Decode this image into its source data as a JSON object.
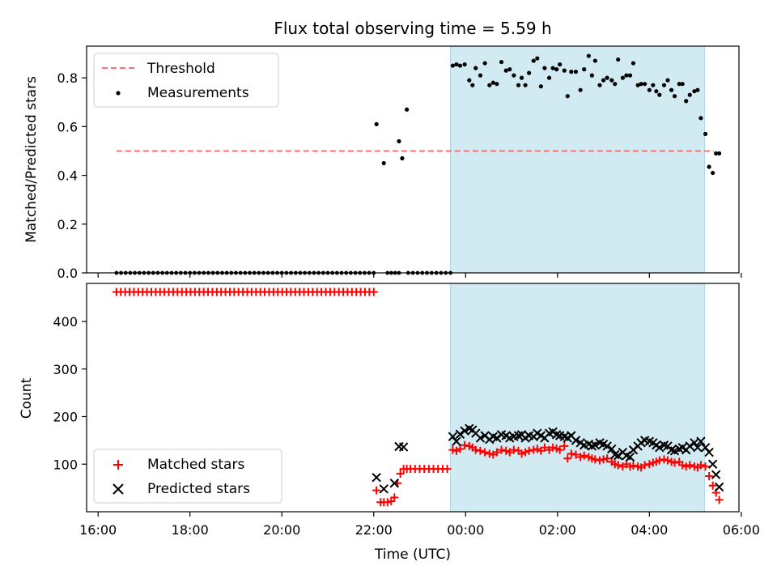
{
  "title": "Flux total observing time = 5.59 h",
  "colors": {
    "threshold": "#ff7070",
    "measurement": "#000000",
    "matched": "#ff0000",
    "predicted": "#000000",
    "shade": "#add8e6"
  },
  "chart_data": [
    {
      "type": "scatter",
      "panel": "top",
      "ylabel": "Matched/Predicted stars",
      "xlabel": "",
      "ylim": [
        0,
        0.93
      ],
      "yticks": [
        "0.0",
        "0.2",
        "0.4",
        "0.6",
        "0.8"
      ],
      "grid": false,
      "legend_position": "top-left",
      "shaded_interval_hours": [
        23.67,
        29.2
      ],
      "series": [
        {
          "name": "Threshold",
          "kind": "dashed-line",
          "x": [
            16.4,
            29.4
          ],
          "y": [
            0.5,
            0.5
          ]
        },
        {
          "name": "Measurements",
          "kind": "points",
          "zero_run_hours": [
            [
              16.4,
              22.0
            ],
            [
              22.3,
              22.55
            ],
            [
              22.75,
              23.67
            ]
          ],
          "x": [
            22.06,
            22.22,
            22.55,
            22.62,
            22.72,
            23.72,
            23.8,
            23.88,
            23.98,
            24.08,
            24.15,
            24.22,
            24.32,
            24.42,
            24.52,
            24.6,
            24.68,
            24.78,
            24.88,
            24.96,
            25.05,
            25.15,
            25.22,
            25.3,
            25.38,
            25.48,
            25.56,
            25.64,
            25.72,
            25.82,
            25.9,
            25.98,
            26.05,
            26.15,
            26.22,
            26.3,
            26.4,
            26.5,
            26.58,
            26.68,
            26.75,
            26.82,
            26.92,
            27.0,
            27.08,
            27.18,
            27.25,
            27.32,
            27.42,
            27.5,
            27.58,
            27.65,
            27.75,
            27.82,
            27.9,
            28.0,
            28.08,
            28.15,
            28.22,
            28.32,
            28.4,
            28.48,
            28.55,
            28.65,
            28.72,
            28.8,
            28.88,
            28.98,
            29.05,
            29.12,
            29.22,
            29.3,
            29.38,
            29.45,
            29.52
          ],
          "y": [
            0.61,
            0.45,
            0.54,
            0.47,
            0.67,
            0.85,
            0.855,
            0.85,
            0.855,
            0.79,
            0.77,
            0.84,
            0.81,
            0.86,
            0.77,
            0.78,
            0.775,
            0.865,
            0.83,
            0.835,
            0.81,
            0.77,
            0.8,
            0.77,
            0.82,
            0.87,
            0.88,
            0.765,
            0.84,
            0.8,
            0.84,
            0.835,
            0.855,
            0.83,
            0.725,
            0.825,
            0.825,
            0.75,
            0.835,
            0.89,
            0.81,
            0.87,
            0.77,
            0.79,
            0.8,
            0.79,
            0.775,
            0.875,
            0.8,
            0.81,
            0.81,
            0.86,
            0.77,
            0.775,
            0.775,
            0.75,
            0.77,
            0.745,
            0.73,
            0.77,
            0.79,
            0.75,
            0.725,
            0.775,
            0.775,
            0.705,
            0.73,
            0.745,
            0.75,
            0.635,
            0.57,
            0.435,
            0.41,
            0.49,
            0.49
          ]
        }
      ]
    },
    {
      "type": "scatter",
      "panel": "bottom",
      "ylabel": "Count",
      "xlabel": "Time (UTC)",
      "xlim": [
        15.75,
        29.95
      ],
      "xticks": [
        "16:00",
        "18:00",
        "20:00",
        "22:00",
        "00:00",
        "02:00",
        "04:00",
        "06:00"
      ],
      "ylim": [
        0,
        480
      ],
      "yticks": [
        "100",
        "200",
        "300",
        "400"
      ],
      "grid": false,
      "legend_position": "bottom-left",
      "shaded_interval_hours": [
        23.67,
        29.2
      ],
      "series": [
        {
          "name": "Matched stars",
          "marker": "plus",
          "segments": [
            {
              "x_start": 16.4,
              "x_end": 22.0,
              "count": 60,
              "y": 462
            }
          ],
          "x": [
            22.06,
            22.15,
            22.22,
            22.3,
            22.38,
            22.45,
            22.52,
            22.58,
            22.65,
            22.72,
            22.8,
            22.9,
            23.0,
            23.1,
            23.2,
            23.3,
            23.4,
            23.5,
            23.6,
            23.72,
            23.8,
            23.88,
            23.98,
            24.08,
            24.15,
            24.22,
            24.32,
            24.42,
            24.52,
            24.6,
            24.68,
            24.78,
            24.88,
            24.96,
            25.05,
            25.15,
            25.22,
            25.3,
            25.38,
            25.48,
            25.56,
            25.64,
            25.72,
            25.82,
            25.9,
            25.98,
            26.05,
            26.15,
            26.22,
            26.3,
            26.4,
            26.5,
            26.58,
            26.68,
            26.75,
            26.82,
            26.92,
            27.0,
            27.08,
            27.18,
            27.25,
            27.32,
            27.42,
            27.5,
            27.58,
            27.65,
            27.75,
            27.82,
            27.9,
            28.0,
            28.08,
            28.15,
            28.22,
            28.32,
            28.4,
            28.48,
            28.55,
            28.65,
            28.72,
            28.8,
            28.88,
            28.98,
            29.05,
            29.12,
            29.22,
            29.3,
            29.38,
            29.45,
            29.52
          ],
          "y": [
            45,
            20,
            20,
            20,
            22,
            30,
            60,
            80,
            90,
            90,
            90,
            90,
            90,
            90,
            90,
            90,
            90,
            90,
            90,
            130,
            128,
            132,
            140,
            138,
            135,
            130,
            128,
            125,
            122,
            120,
            125,
            130,
            128,
            125,
            130,
            128,
            122,
            125,
            128,
            130,
            132,
            128,
            135,
            130,
            135,
            133,
            130,
            138,
            112,
            122,
            120,
            115,
            118,
            115,
            112,
            110,
            108,
            110,
            112,
            105,
            100,
            98,
            95,
            100,
            95,
            97,
            95,
            93,
            98,
            100,
            103,
            105,
            108,
            110,
            108,
            105,
            103,
            105,
            98,
            95,
            98,
            95,
            93,
            98,
            95,
            75,
            55,
            40,
            25
          ]
        },
        {
          "name": "Predicted stars",
          "marker": "cross",
          "x": [
            22.06,
            22.22,
            22.45,
            22.55,
            22.65,
            23.72,
            23.8,
            23.88,
            23.98,
            24.08,
            24.15,
            24.22,
            24.32,
            24.42,
            24.52,
            24.6,
            24.68,
            24.78,
            24.88,
            24.96,
            25.05,
            25.15,
            25.22,
            25.3,
            25.38,
            25.48,
            25.56,
            25.64,
            25.72,
            25.82,
            25.9,
            25.98,
            26.05,
            26.15,
            26.22,
            26.3,
            26.4,
            26.5,
            26.58,
            26.68,
            26.75,
            26.82,
            26.92,
            27.0,
            27.08,
            27.18,
            27.25,
            27.32,
            27.42,
            27.5,
            27.58,
            27.65,
            27.75,
            27.82,
            27.9,
            28.0,
            28.08,
            28.15,
            28.22,
            28.32,
            28.4,
            28.48,
            28.55,
            28.65,
            28.72,
            28.8,
            28.88,
            28.98,
            29.05,
            29.12,
            29.22,
            29.3,
            29.38,
            29.45,
            29.52
          ],
          "y": [
            72,
            48,
            60,
            137,
            136,
            158,
            148,
            163,
            170,
            175,
            172,
            165,
            155,
            160,
            152,
            158,
            155,
            162,
            160,
            155,
            158,
            160,
            162,
            155,
            160,
            158,
            165,
            160,
            155,
            165,
            168,
            162,
            160,
            158,
            155,
            160,
            150,
            145,
            140,
            142,
            138,
            140,
            145,
            142,
            138,
            132,
            120,
            118,
            125,
            118,
            115,
            130,
            138,
            145,
            150,
            148,
            145,
            140,
            135,
            140,
            138,
            130,
            128,
            132,
            135,
            130,
            138,
            145,
            135,
            148,
            135,
            125,
            100,
            78,
            52
          ]
        }
      ]
    }
  ]
}
